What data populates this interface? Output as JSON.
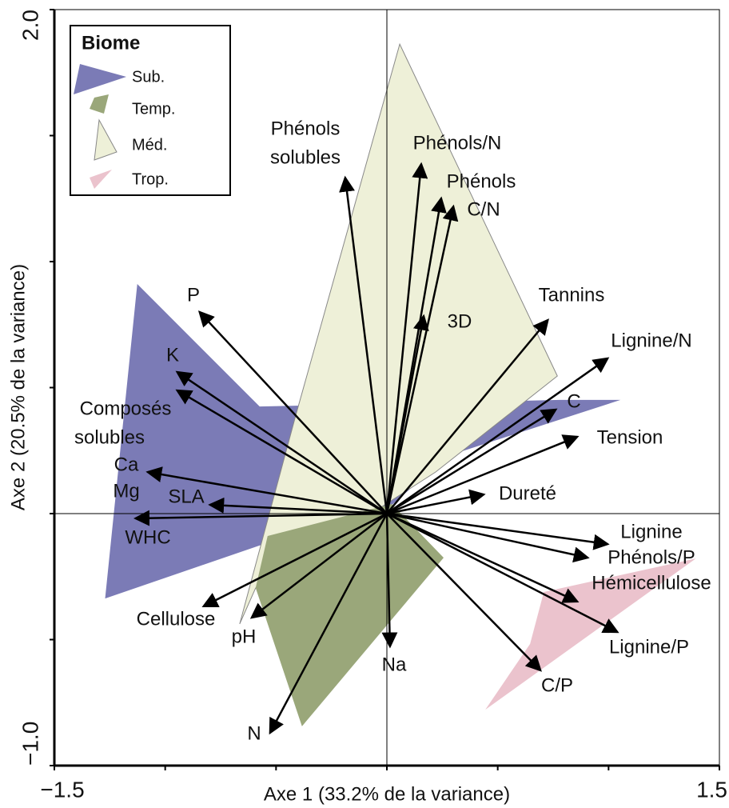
{
  "chart_data": {
    "type": "biplot",
    "xlabel": "Axe 1 (33.2% de la variance)",
    "ylabel": "Axe 2 (20.5% de la variance)",
    "xlim": [
      -1.5,
      1.5
    ],
    "ylim": [
      -1.0,
      2.0
    ],
    "xticks": [
      {
        "value": -1.5,
        "label": "−1.5"
      },
      1.5
    ],
    "yticks": [
      {
        "value": -1.0,
        "label": "−1.0"
      },
      {
        "value": 2.0,
        "label": "2.0"
      }
    ],
    "xminor_ticks": [
      -1,
      -0.5,
      0,
      0.5,
      1
    ],
    "yminor_ticks": [
      -0.5,
      0,
      0.5,
      1,
      1.5
    ],
    "legend_title": "Biome",
    "legend": "upper left",
    "series": [
      {
        "name": "Sub.",
        "color": "#7b7bb6",
        "x": [
          -1.126,
          -0.574,
          0.78,
          1.054,
          0.274,
          -0.014,
          -0.556,
          -1.271
        ],
        "y": [
          0.911,
          0.425,
          0.451,
          0.451,
          0.229,
          0.006,
          -0.121,
          -0.337
        ]
      },
      {
        "name": "Temp.",
        "color": "#9aa77a",
        "x": [
          -0.538,
          0.022,
          0.256,
          -0.383,
          -0.592
        ],
        "y": [
          -0.089,
          0.038,
          -0.175,
          -0.844,
          -0.295
        ]
      },
      {
        "name": "Méd.",
        "color": "#eef0d8",
        "x": [
          0.058,
          0.769,
          0.22,
          -0.592,
          -0.664,
          -0.412
        ],
        "y": [
          1.863,
          0.546,
          0.165,
          -0.295,
          -0.438,
          0.387
        ]
      },
      {
        "name": "Trop.",
        "color": "#ebc3cd",
        "x": [
          0.708,
          1.394,
          0.444,
          0.646
        ],
        "y": [
          -0.311,
          -0.178,
          -0.778,
          -0.517
        ]
      }
    ],
    "arrows": [
      {
        "label": [
          "Phénols",
          "solubles"
        ],
        "x": -0.188,
        "y": 1.333
      },
      {
        "label": [
          "Phénols/N"
        ],
        "x": 0.155,
        "y": 1.387
      },
      {
        "label": [
          "Phénols"
        ],
        "x": 0.245,
        "y": 1.251
      },
      {
        "label": [
          "C/N"
        ],
        "x": 0.3,
        "y": 1.219
      },
      {
        "label": [
          "3D"
        ],
        "x": 0.166,
        "y": 0.784
      },
      {
        "label": [
          "Tannins"
        ],
        "x": 0.726,
        "y": 0.768
      },
      {
        "label": [
          "Lignine/N"
        ],
        "x": 0.996,
        "y": 0.616
      },
      {
        "label": [
          "C"
        ],
        "x": 0.762,
        "y": 0.413
      },
      {
        "label": [
          "Tension"
        ],
        "x": 0.859,
        "y": 0.305
      },
      {
        "label": [
          "Dureté"
        ],
        "x": 0.437,
        "y": 0.076
      },
      {
        "label": [
          "Lignine"
        ],
        "x": 0.996,
        "y": -0.121
      },
      {
        "label": [
          "Phénols/P"
        ],
        "x": 0.906,
        "y": -0.175
      },
      {
        "label": [
          "Hémicellulose"
        ],
        "x": 0.859,
        "y": -0.349
      },
      {
        "label": [
          "Lignine/P"
        ],
        "x": 1.04,
        "y": -0.47
      },
      {
        "label": [
          "C/P"
        ],
        "x": 0.693,
        "y": -0.622
      },
      {
        "label": [
          "Na"
        ],
        "x": 0.014,
        "y": -0.527
      },
      {
        "label": [
          "N"
        ],
        "x": -0.527,
        "y": -0.87
      },
      {
        "label": [
          "pH"
        ],
        "x": -0.61,
        "y": -0.413
      },
      {
        "label": [
          "Cellulose"
        ],
        "x": -0.827,
        "y": -0.368
      },
      {
        "label": [
          "WHC"
        ],
        "x": -1.134,
        "y": -0.019
      },
      {
        "label": [
          "SLA"
        ],
        "x": -0.798,
        "y": 0.035
      },
      {
        "label": [
          "Ca",
          "Mg"
        ],
        "x": -1.079,
        "y": 0.165
      },
      {
        "label": [
          "Composés",
          "solubles"
        ],
        "x": -0.946,
        "y": 0.489
      },
      {
        "label": [
          "K"
        ],
        "x": -0.946,
        "y": 0.562
      },
      {
        "label": [
          "P"
        ],
        "x": -0.845,
        "y": 0.8
      }
    ]
  }
}
